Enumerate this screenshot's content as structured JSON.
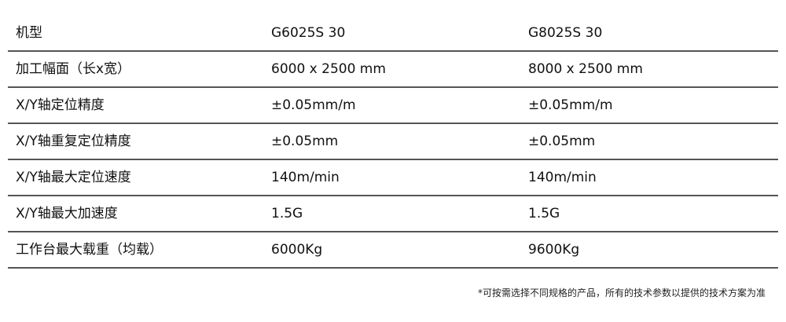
{
  "table": {
    "rows": [
      [
        "机型",
        "G6025S 30",
        "G8025S  30"
      ],
      [
        "加工幅面（长x宽）",
        "6000 x 2500 mm",
        "8000 x 2500 mm"
      ],
      [
        "X/Y轴定位精度",
        "±0.05mm/m",
        "±0.05mm/m"
      ],
      [
        "X/Y轴重复定位精度",
        "±0.05mm",
        "±0.05mm"
      ],
      [
        "X/Y轴最大定位速度",
        "140m/min",
        "140m/min"
      ],
      [
        "X/Y轴最大加速度",
        "1.5G",
        "1.5G"
      ],
      [
        "工作台最大载重（均载）",
        "6000Kg",
        "9600Kg"
      ]
    ]
  },
  "footnote": "*可按需选择不同规格的产品，所有的技术参数以提供的技术方案为准"
}
